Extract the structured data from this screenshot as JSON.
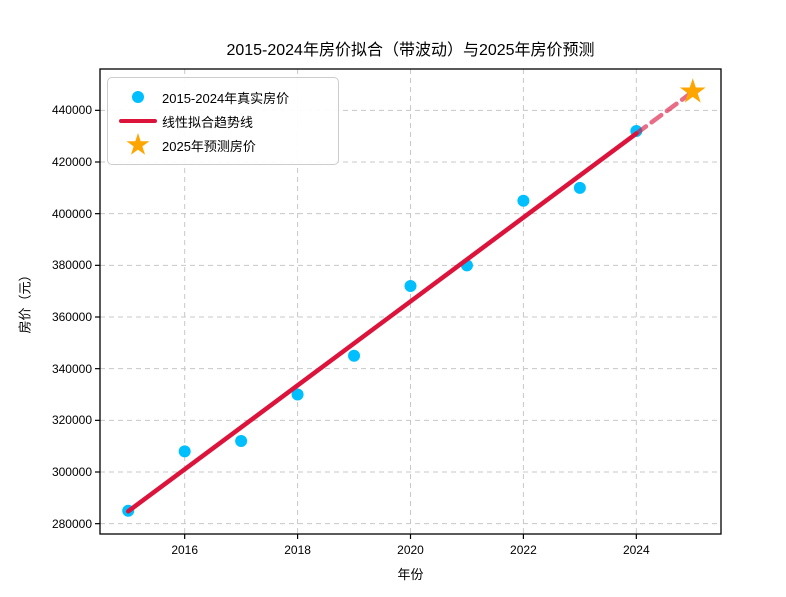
{
  "figure": {
    "background_color": "#ffffff"
  },
  "chart_data": {
    "type": "scatter",
    "title": "2015-2024年房价拟合（带波动）与2025年房价预测",
    "xlabel": "年份",
    "ylabel": "房价（元）",
    "xlim": [
      2014.5,
      2025.5
    ],
    "ylim": [
      276000,
      456000
    ],
    "x_ticks": [
      2016,
      2018,
      2020,
      2022,
      2024
    ],
    "y_ticks": [
      280000,
      300000,
      320000,
      340000,
      360000,
      380000,
      400000,
      420000,
      440000
    ],
    "grid": true,
    "grid_style": "dashed",
    "grid_color": "#c8c8c8",
    "legend_position": "upper-left",
    "series": [
      {
        "name": "2015-2024年真实房价",
        "type": "scatter",
        "marker": "circle",
        "color": "#00BFFF",
        "x": [
          2015,
          2016,
          2017,
          2018,
          2019,
          2020,
          2021,
          2022,
          2023,
          2024
        ],
        "y": [
          285000,
          308000,
          312000,
          330000,
          345000,
          372000,
          380000,
          405000,
          410000,
          432000
        ]
      },
      {
        "name": "线性拟合趋势线",
        "type": "line",
        "color": "#DC143C",
        "segments": [
          {
            "style": "solid",
            "opacity": 1,
            "x": [
              2015,
              2024
            ],
            "y": [
              284800,
              431000
            ]
          },
          {
            "style": "dashed",
            "opacity": 0.62,
            "x": [
              2024,
              2025
            ],
            "y": [
              431000,
              447200
            ]
          }
        ]
      },
      {
        "name": "2025年预测房价",
        "type": "scatter",
        "marker": "star",
        "color": "#FFA500",
        "x": [
          2025
        ],
        "y": [
          447200
        ]
      }
    ],
    "legend": [
      {
        "label": "2015-2024年真实房价",
        "marker": "circle",
        "color": "#00BFFF"
      },
      {
        "label": "线性拟合趋势线",
        "marker": "line",
        "color": "#DC143C"
      },
      {
        "label": "2025年预测房价",
        "marker": "star",
        "color": "#FFA500"
      }
    ]
  }
}
